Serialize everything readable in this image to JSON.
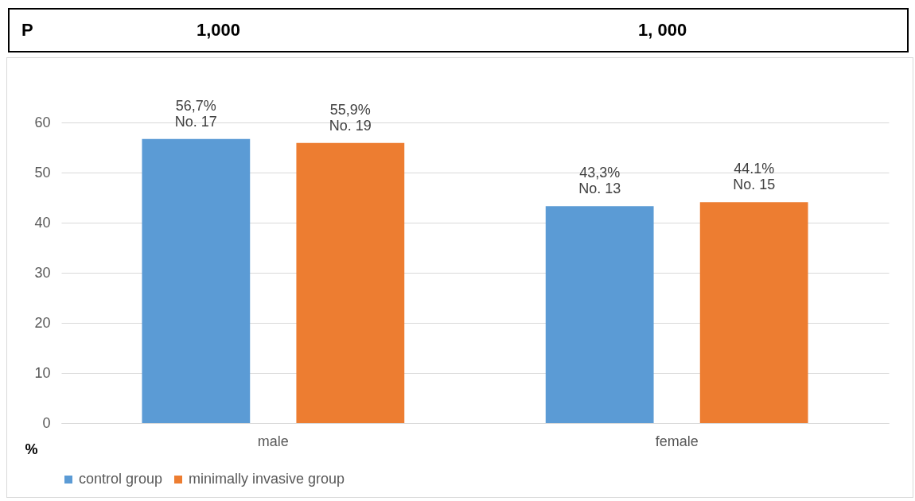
{
  "chart_data": {
    "type": "bar",
    "categories": [
      "male",
      "female"
    ],
    "series": [
      {
        "name": "control group",
        "color": "#5b9bd5",
        "values": [
          56.7,
          43.3
        ],
        "value_labels": [
          "56,7%\nNo. 17",
          "43,3%\nNo. 13"
        ]
      },
      {
        "name": "minimally invasive group",
        "color": "#ed7d31",
        "values": [
          55.9,
          44.1
        ],
        "value_labels": [
          "55,9%\nNo. 19",
          "44.1%\nNo. 15"
        ]
      }
    ],
    "ylabel": "%",
    "ylim": [
      0,
      60
    ],
    "yticks": [
      0,
      10,
      20,
      30,
      40,
      50,
      60
    ],
    "grid": "y",
    "legend": "bottom",
    "annotations": [
      "P",
      "1,000",
      "1, 000"
    ]
  }
}
